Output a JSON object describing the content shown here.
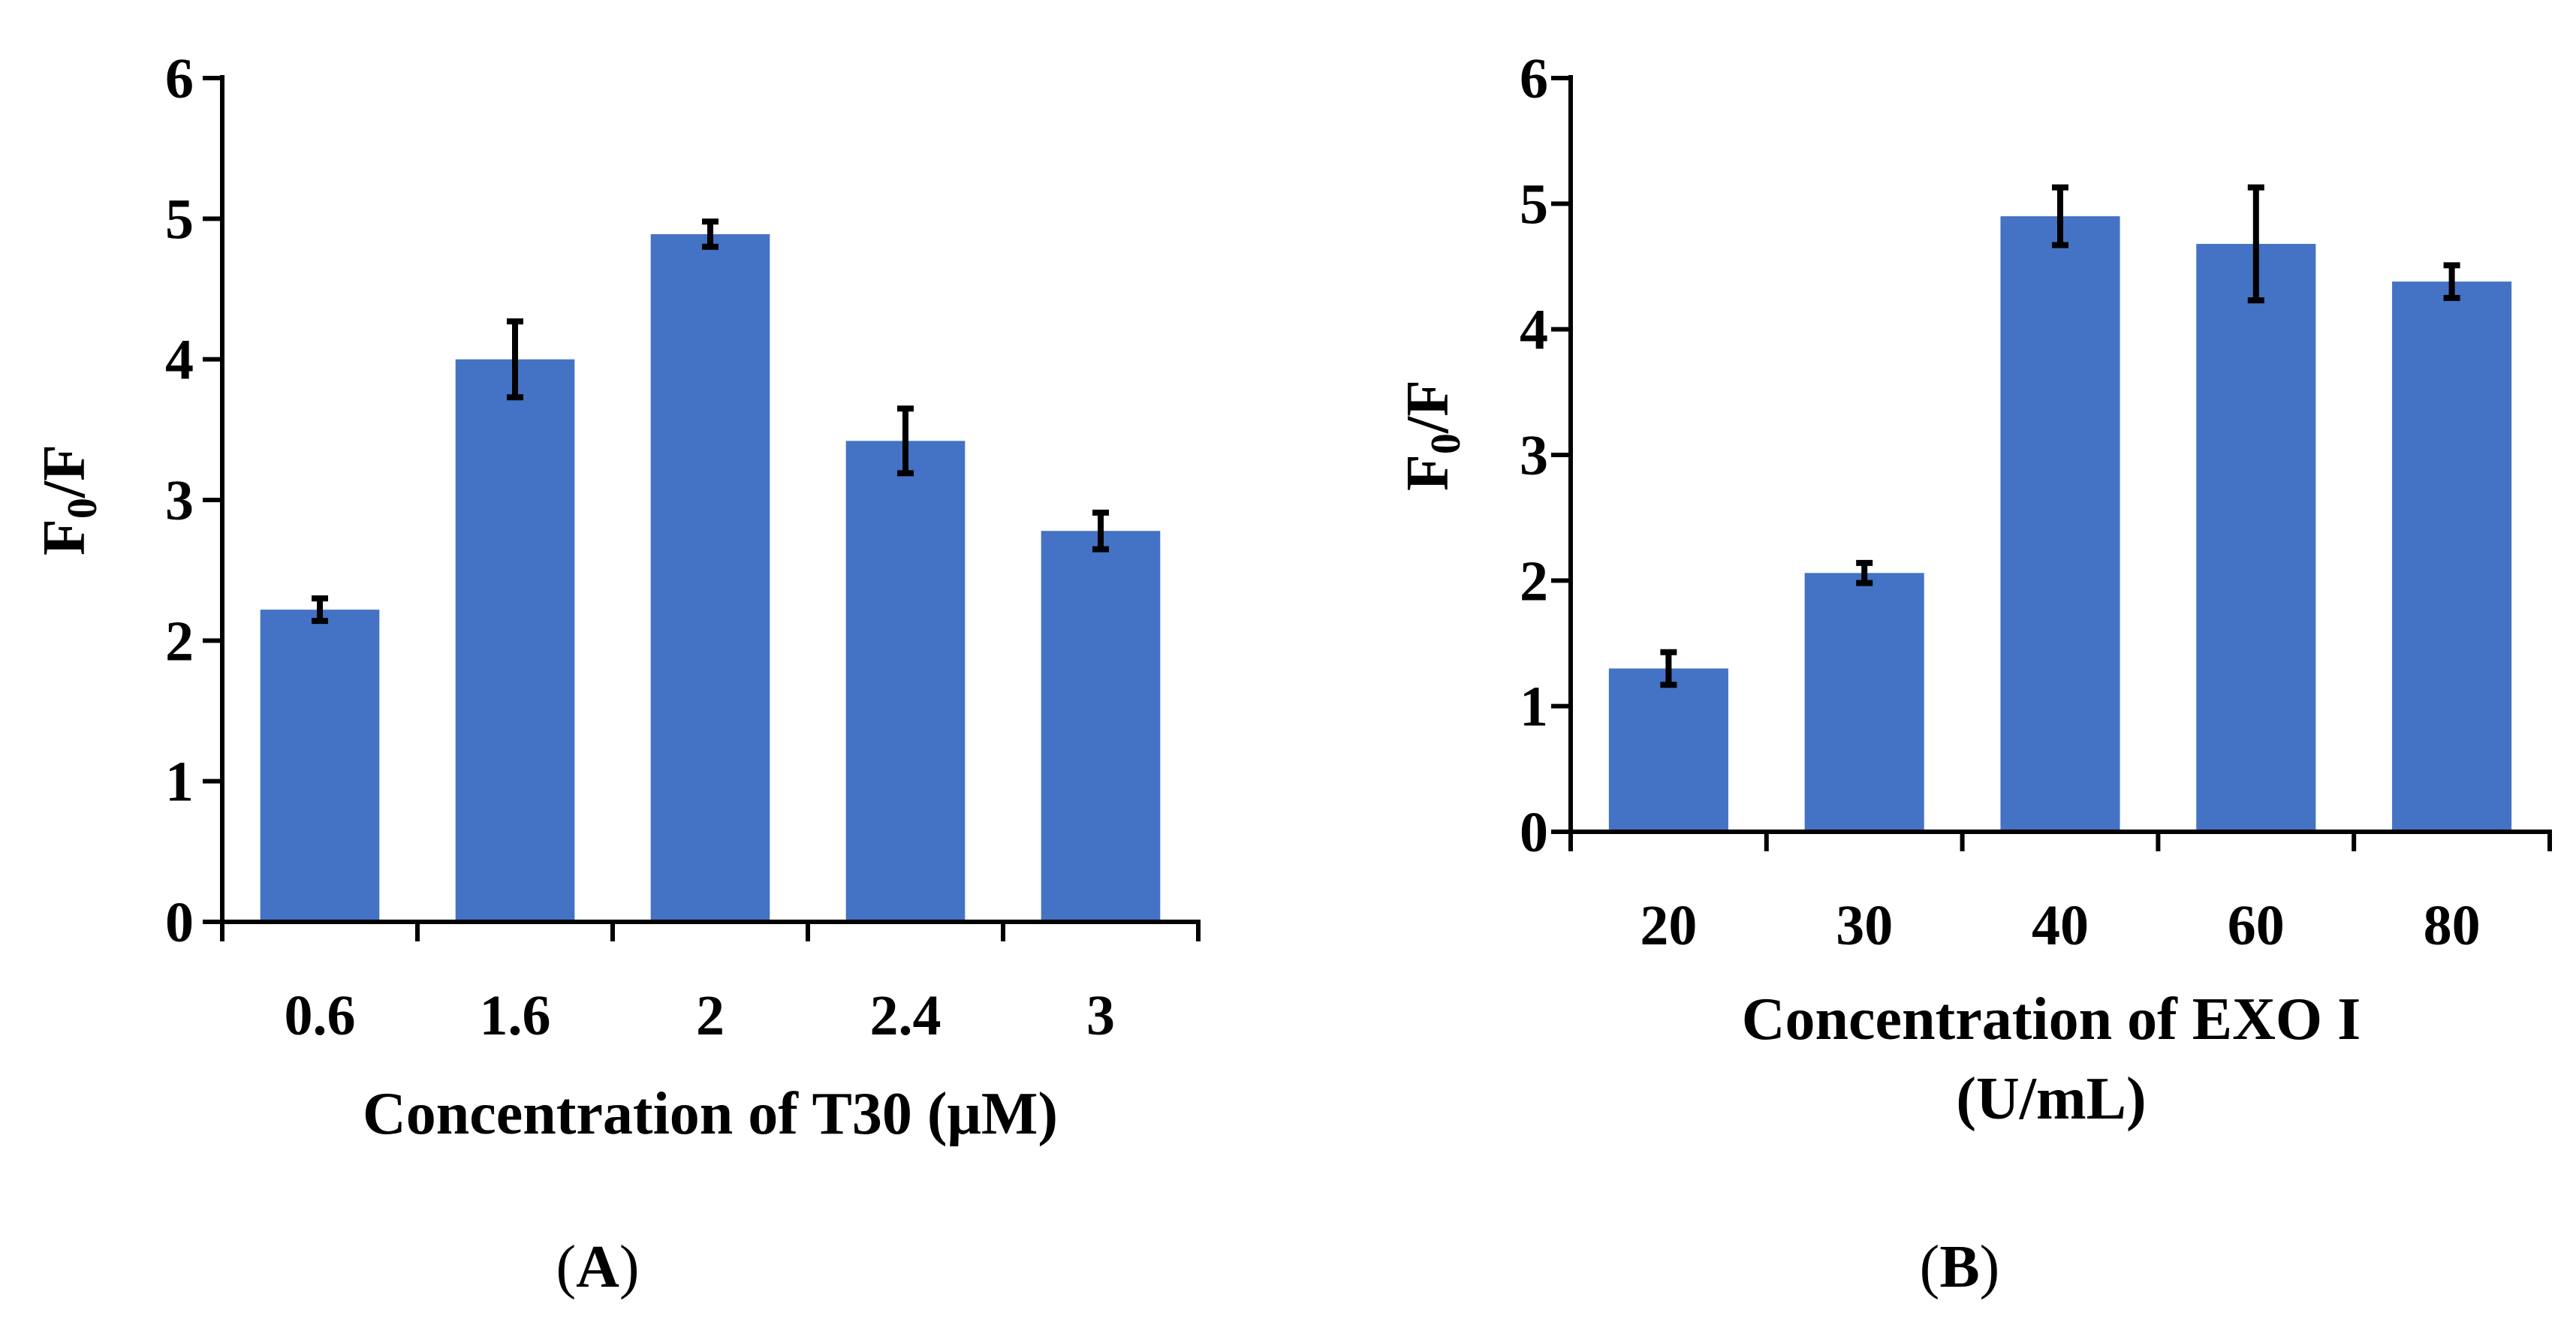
{
  "chart_data": [
    {
      "type": "bar",
      "panel_label": "A",
      "categories": [
        "0.6",
        "1.6",
        "2",
        "2.4",
        "3"
      ],
      "values": [
        2.22,
        4.0,
        4.89,
        3.42,
        2.78
      ],
      "errors": [
        0.08,
        0.27,
        0.09,
        0.23,
        0.13
      ],
      "ylabel_main": "F",
      "ylabel_sub": "0",
      "ylabel_tail": "/F",
      "xlabel_lines": [
        "Concentration of T30 (μM)"
      ],
      "ylim": [
        0,
        6
      ],
      "yticks": [
        0,
        1,
        2,
        3,
        4,
        5,
        6
      ],
      "bar_color": "#4472C4"
    },
    {
      "type": "bar",
      "panel_label": "B",
      "categories": [
        "20",
        "30",
        "40",
        "60",
        "80"
      ],
      "values": [
        1.3,
        2.06,
        4.9,
        4.68,
        4.38
      ],
      "errors": [
        0.13,
        0.08,
        0.23,
        0.45,
        0.13
      ],
      "ylabel_main": "F",
      "ylabel_sub": "0",
      "ylabel_tail": "/F",
      "xlabel_lines": [
        "Concentration of EXO I",
        "(U/mL)"
      ],
      "ylim": [
        0,
        6
      ],
      "yticks": [
        0,
        1,
        2,
        3,
        4,
        5,
        6
      ],
      "bar_color": "#4472C4"
    }
  ]
}
